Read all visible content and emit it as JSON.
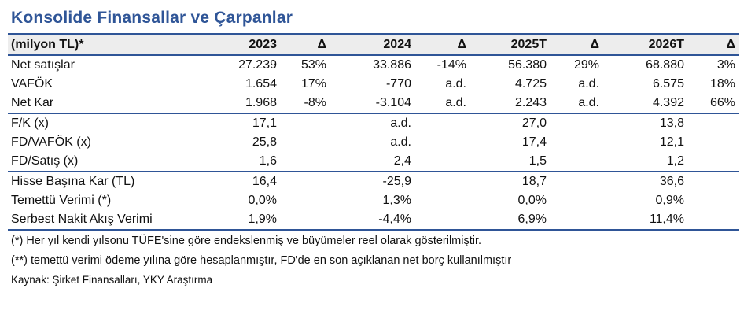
{
  "title": "Konsolide Finansallar ve Çarpanlar",
  "table": {
    "header": [
      "(milyon TL)*",
      "2023",
      "Δ",
      "2024",
      "Δ",
      "2025T",
      "Δ",
      "2026T",
      "Δ"
    ],
    "rows": [
      [
        "Net satışlar",
        "27.239",
        "53%",
        "33.886",
        "-14%",
        "56.380",
        "29%",
        "68.880",
        "3%"
      ],
      [
        "VAFÖK",
        "1.654",
        "17%",
        "-770",
        "a.d.",
        "4.725",
        "a.d.",
        "6.575",
        "18%"
      ],
      [
        "Net Kar",
        "1.968",
        "-8%",
        "-3.104",
        "a.d.",
        "2.243",
        "a.d.",
        "4.392",
        "66%"
      ],
      [
        "F/K (x)",
        "17,1",
        "",
        "a.d.",
        "",
        "27,0",
        "",
        "13,8",
        ""
      ],
      [
        "FD/VAFÖK (x)",
        "25,8",
        "",
        "a.d.",
        "",
        "17,4",
        "",
        "12,1",
        ""
      ],
      [
        "FD/Satış (x)",
        "1,6",
        "",
        "2,4",
        "",
        "1,5",
        "",
        "1,2",
        ""
      ],
      [
        "Hisse Başına Kar (TL)",
        "16,4",
        "",
        "-25,9",
        "",
        "18,7",
        "",
        "36,6",
        ""
      ],
      [
        "Temettü Verimi (*)",
        "0,0%",
        "",
        "1,3%",
        "",
        "0,0%",
        "",
        "0,9%",
        ""
      ],
      [
        "Serbest Nakit Akış Verimi",
        "1,9%",
        "",
        "-4,4%",
        "",
        "6,9%",
        "",
        "11,4%",
        ""
      ]
    ]
  },
  "notes": {
    "note1": "(*) Her yıl kendi yılsonu TÜFE'sine göre endekslenmiş ve büyümeler reel olarak gösterilmiştir.",
    "note2": "(**) temettü verimi ödeme yılına göre hesaplanmıştır, FD'de en son açıklanan net borç kullanılmıştır",
    "source": "Kaynak: Şirket Finansalları, YKY Araştırma"
  },
  "colors": {
    "accent": "#2f5597",
    "header_bg": "#ededed"
  }
}
